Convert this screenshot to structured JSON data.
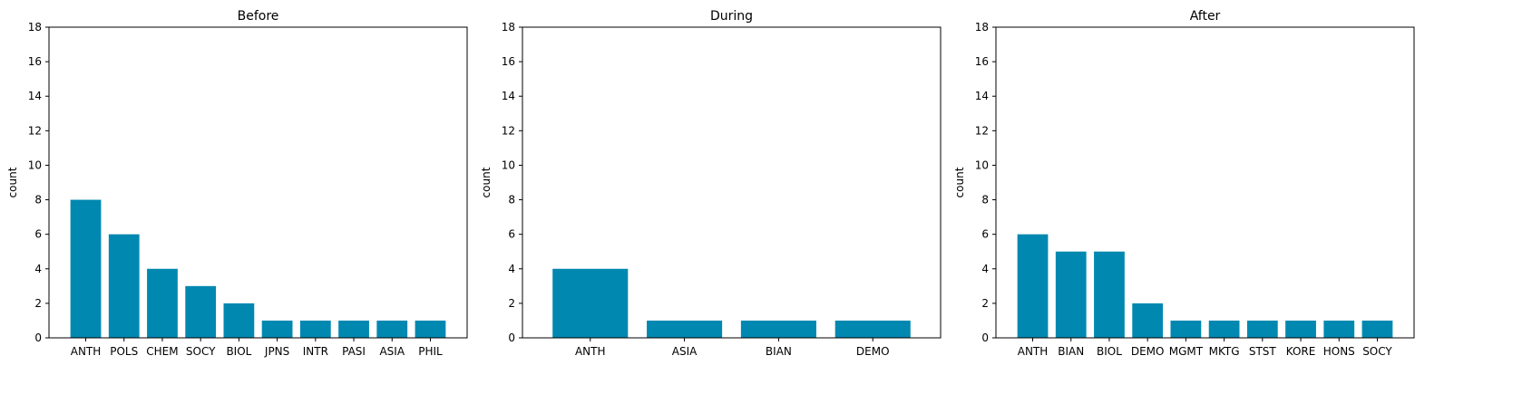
{
  "figure": {
    "bar_color": "#0088b0"
  },
  "chart_data": [
    {
      "type": "bar",
      "title": "Before",
      "xlabel": "",
      "ylabel": "count",
      "ylim": [
        0,
        18
      ],
      "yticks": [
        0,
        2,
        4,
        6,
        8,
        10,
        12,
        14,
        16,
        18
      ],
      "categories": [
        "ANTH",
        "POLS",
        "CHEM",
        "SOCY",
        "BIOL",
        "JPNS",
        "INTR",
        "PASI",
        "ASIA",
        "PHIL"
      ],
      "values": [
        8,
        6,
        4,
        3,
        2,
        1,
        1,
        1,
        1,
        1
      ],
      "grid": false
    },
    {
      "type": "bar",
      "title": "During",
      "xlabel": "",
      "ylabel": "count",
      "ylim": [
        0,
        18
      ],
      "yticks": [
        0,
        2,
        4,
        6,
        8,
        10,
        12,
        14,
        16,
        18
      ],
      "categories": [
        "ANTH",
        "ASIA",
        "BIAN",
        "DEMO"
      ],
      "values": [
        4,
        1,
        1,
        1
      ],
      "grid": false
    },
    {
      "type": "bar",
      "title": "After",
      "xlabel": "",
      "ylabel": "count",
      "ylim": [
        0,
        18
      ],
      "yticks": [
        0,
        2,
        4,
        6,
        8,
        10,
        12,
        14,
        16,
        18
      ],
      "categories": [
        "ANTH",
        "BIAN",
        "BIOL",
        "DEMO",
        "MGMT",
        "MKTG",
        "STST",
        "KORE",
        "HONS",
        "SOCY"
      ],
      "values": [
        6,
        5,
        5,
        2,
        1,
        1,
        1,
        1,
        1,
        1
      ],
      "grid": false
    }
  ]
}
